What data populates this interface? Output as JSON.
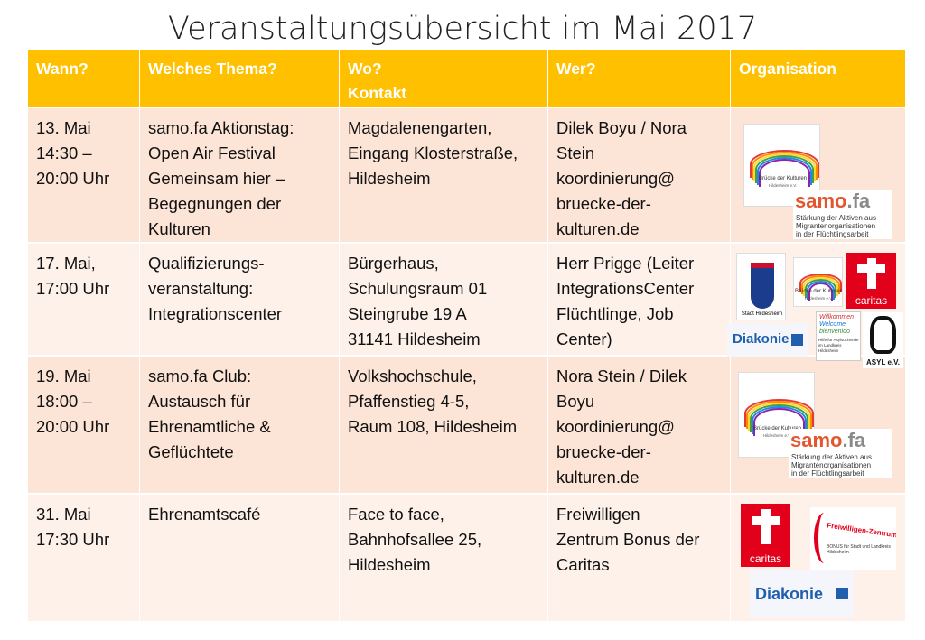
{
  "title": "Veranstaltungsübersicht im Mai 2017",
  "table": {
    "header": [
      [
        "Wann?"
      ],
      [
        "Welches Thema?"
      ],
      [
        "Wo?",
        "Kontakt"
      ],
      [
        "Wer?"
      ],
      [
        "Organisation"
      ]
    ],
    "rows": [
      [
        [
          "13. Mai",
          "14:30 –",
          "20:00 Uhr"
        ],
        [
          "samo.fa Aktionstag:",
          "Open Air Festival",
          "Gemeinsam hier –",
          "Begegnungen der",
          "Kulturen"
        ],
        [
          "Magdalenengarten,",
          "Eingang Klosterstraße,",
          "Hildesheim"
        ],
        [
          "Dilek Boyu / Nora",
          "Stein",
          "koordinierung@",
          "bruecke-der-",
          "kulturen.de"
        ]
      ],
      [
        [
          "17. Mai,",
          "17:00 Uhr"
        ],
        [
          "Qualifizierungs-",
          "veranstaltung:",
          "Integrationscenter"
        ],
        [
          "Bürgerhaus,",
          "Schulungsraum 01",
          "Steingrube 19 A",
          "31141 Hildesheim"
        ],
        [
          "Herr Prigge (Leiter",
          "IntegrationsCenter",
          "Flüchtlinge, Job",
          "Center)"
        ]
      ],
      [
        [
          "19. Mai",
          "18:00 –",
          "20:00 Uhr"
        ],
        [
          "samo.fa Club:",
          "Austausch für",
          "Ehrenamtliche &",
          "Geflüchtete"
        ],
        [
          "Volkshochschule,",
          "Pfaffenstieg 4-5,",
          "Raum 108, Hildesheim"
        ],
        [
          "Nora Stein / Dilek",
          "Boyu",
          "koordinierung@",
          "bruecke-der-",
          "kulturen.de"
        ]
      ],
      [
        [
          "31. Mai",
          "17:30 Uhr"
        ],
        [
          "Ehrenamtscafé"
        ],
        [
          "Face to face,",
          "Bahnhofsallee 25,",
          "Hildesheim"
        ],
        [
          "Freiwilligen",
          "Zentrum Bonus der",
          "Caritas"
        ]
      ]
    ]
  },
  "logos": [
    [
      [
        "Brücke der Kulturen",
        "Hildesheim e.V."
      ],
      [
        "samo",
        ".fa",
        "Stärkung der Aktiven aus",
        "Migrantenorganisationen",
        "in der Flüchtlingsarbeit"
      ]
    ],
    [
      [
        "Stadt Hildesheim"
      ],
      [
        "Brücke der Kulturen",
        "Hildesheim e.V."
      ],
      [
        "caritas"
      ],
      [
        "Diakonie"
      ],
      [
        "Willkommen",
        "Welcome",
        "bienvenido",
        "Hilfe für Asylsuchende im Landkreis Hildesheim"
      ],
      [
        "ASYL e.V."
      ]
    ],
    [
      [
        "Brücke der Kulturen",
        "Hildesheim e.V."
      ],
      [
        "samo",
        ".fa",
        "Stärkung der Aktiven aus",
        "Migrantenorganisationen",
        "in der Flüchtlingsarbeit"
      ]
    ],
    [
      [
        "caritas"
      ],
      [
        "Freiwilligen-Zentrum",
        "BONUS für Stadt und Landkreis Hildesheim"
      ],
      [
        "Diakonie"
      ]
    ]
  ]
}
